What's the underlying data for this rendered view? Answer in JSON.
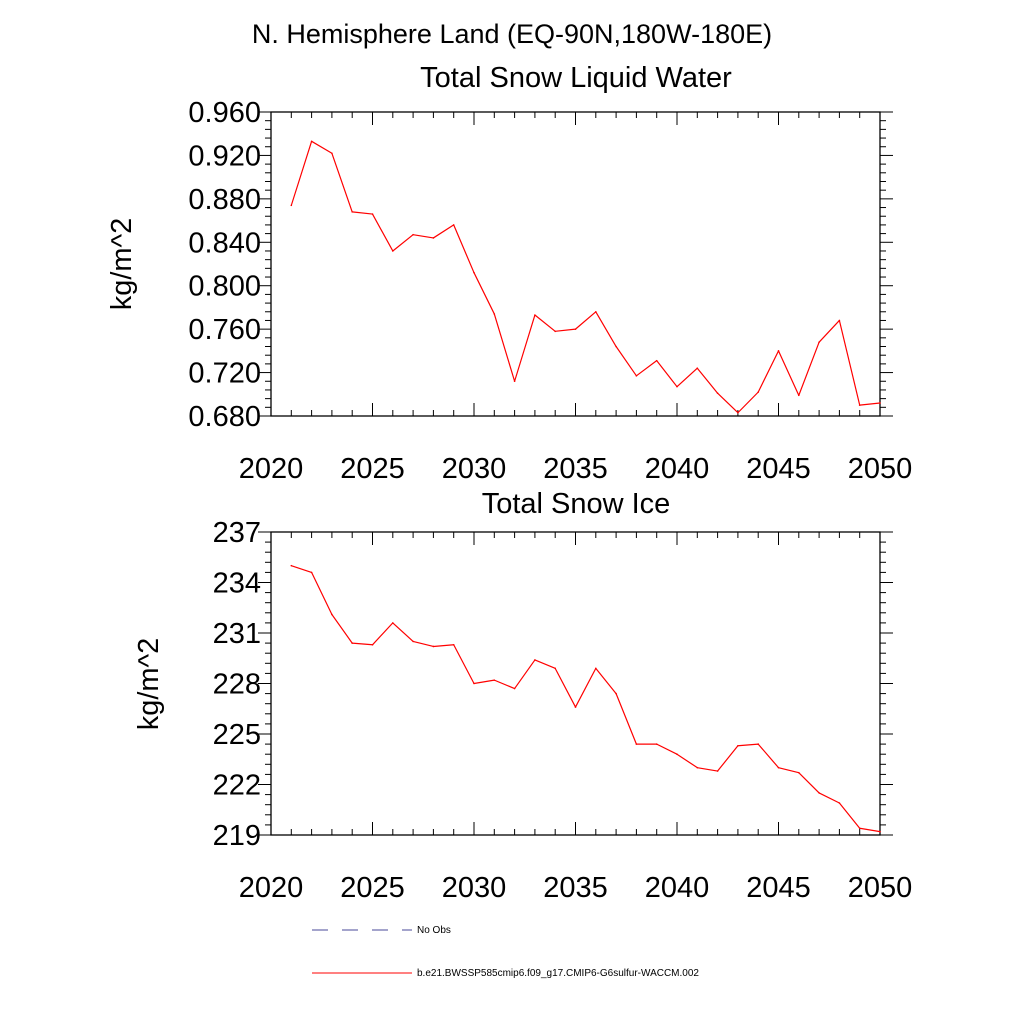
{
  "title": "N. Hemisphere Land (EQ-90N,180W-180E)",
  "colors": {
    "series": "#ff0000",
    "obs": "#4a4a9a",
    "axis": "#000000"
  },
  "chart_data": [
    {
      "type": "line",
      "title": "Total Snow Liquid Water",
      "ylabel": "kg/m^2",
      "xlim": [
        2020,
        2050
      ],
      "ylim": [
        0.68,
        0.96
      ],
      "xticks": [
        2020,
        2025,
        2030,
        2035,
        2040,
        2045,
        2050
      ],
      "xtick_labels": [
        "2020",
        "2025",
        "2030",
        "2035",
        "2040",
        "2045",
        "2050"
      ],
      "yticks": [
        0.68,
        0.72,
        0.76,
        0.8,
        0.84,
        0.88,
        0.92,
        0.96
      ],
      "ytick_labels": [
        "0.680",
        "0.720",
        "0.760",
        "0.800",
        "0.840",
        "0.880",
        "0.920",
        "0.960"
      ],
      "series": [
        {
          "name": "b.e21.BWSSP585cmip6.f09_g17.CMIP6-G6sulfur-WACCM.002",
          "x": [
            2021,
            2022,
            2023,
            2024,
            2025,
            2026,
            2027,
            2028,
            2029,
            2030,
            2031,
            2032,
            2033,
            2034,
            2035,
            2036,
            2037,
            2038,
            2039,
            2040,
            2041,
            2042,
            2043,
            2044,
            2045,
            2046,
            2047,
            2048,
            2049,
            2050
          ],
          "y": [
            0.874,
            0.933,
            0.922,
            0.868,
            0.866,
            0.832,
            0.847,
            0.844,
            0.856,
            0.812,
            0.774,
            0.712,
            0.773,
            0.758,
            0.76,
            0.776,
            0.744,
            0.717,
            0.731,
            0.707,
            0.724,
            0.701,
            0.683,
            0.702,
            0.74,
            0.699,
            0.748,
            0.768,
            0.69,
            0.692
          ]
        }
      ]
    },
    {
      "type": "line",
      "title": "Total Snow Ice",
      "ylabel": "kg/m^2",
      "xlim": [
        2020,
        2050
      ],
      "ylim": [
        219,
        237
      ],
      "xticks": [
        2020,
        2025,
        2030,
        2035,
        2040,
        2045,
        2050
      ],
      "xtick_labels": [
        "2020",
        "2025",
        "2030",
        "2035",
        "2040",
        "2045",
        "2050"
      ],
      "yticks": [
        219,
        222,
        225,
        228,
        231,
        234,
        237
      ],
      "ytick_labels": [
        "219",
        "222",
        "225",
        "228",
        "231",
        "234",
        "237"
      ],
      "series": [
        {
          "name": "b.e21.BWSSP585cmip6.f09_g17.CMIP6-G6sulfur-WACCM.002",
          "x": [
            2021,
            2022,
            2023,
            2024,
            2025,
            2026,
            2027,
            2028,
            2029,
            2030,
            2031,
            2032,
            2033,
            2034,
            2035,
            2036,
            2037,
            2038,
            2039,
            2040,
            2041,
            2042,
            2043,
            2044,
            2045,
            2046,
            2047,
            2048,
            2049,
            2050
          ],
          "y": [
            235.0,
            234.6,
            232.1,
            230.4,
            230.3,
            231.6,
            230.5,
            230.2,
            230.3,
            228.0,
            228.2,
            227.7,
            229.4,
            228.9,
            226.6,
            228.9,
            227.4,
            224.4,
            224.4,
            223.8,
            223.0,
            222.8,
            224.3,
            224.4,
            223.0,
            222.7,
            221.5,
            220.9,
            219.4,
            219.2
          ]
        }
      ]
    }
  ],
  "legend": {
    "entries": [
      {
        "label": "No Obs",
        "style": "dashed"
      },
      {
        "label": "b.e21.BWSSP585cmip6.f09_g17.CMIP6-G6sulfur-WACCM.002",
        "style": "solid"
      }
    ]
  }
}
